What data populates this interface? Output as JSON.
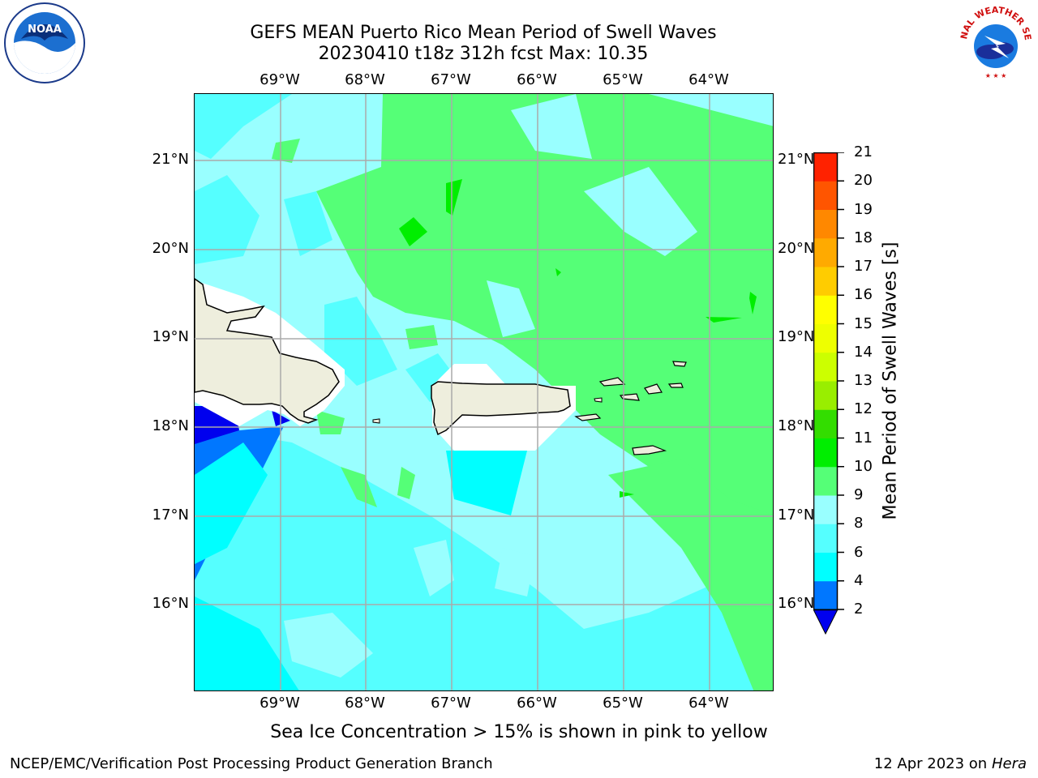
{
  "header": {
    "title_line1": "GEFS MEAN Puerto Rico Mean Period of Swell Waves",
    "title_line2": "20230410 t18z 312h fcst   Max: 10.35"
  },
  "axes": {
    "longitude_ticks": [
      "69°W",
      "68°W",
      "67°W",
      "66°W",
      "65°W",
      "64°W"
    ],
    "latitude_ticks": [
      "21°N",
      "20°N",
      "19°N",
      "18°N",
      "17°N",
      "16°N"
    ]
  },
  "colorbar": {
    "title": "Mean Period of Swell Waves [s]",
    "levels": [
      "2",
      "4",
      "6",
      "8",
      "9",
      "10",
      "11",
      "12",
      "13",
      "14",
      "15",
      "16",
      "17",
      "18",
      "19",
      "20",
      "21"
    ],
    "colors": [
      "#0000ee",
      "#0077ff",
      "#00ffff",
      "#55ffff",
      "#99ffff",
      "#55ff77",
      "#00ee00",
      "#33dd00",
      "#99ee00",
      "#ccff00",
      "#eeff00",
      "#ffff00",
      "#ffcc00",
      "#ffaa00",
      "#ff8800",
      "#ff5500",
      "#ff2200",
      "#ff0000"
    ],
    "extend_color": "#0000ee"
  },
  "map": {
    "land_color": "#eeeedd",
    "grid_color": "#aaaaaa"
  },
  "footnote": "Sea Ice Concentration > 15% is shown in pink to yellow",
  "footer": {
    "credit": "NCEP/EMC/Verification Post Processing Product Generation Branch",
    "date": "12 Apr 2023 on",
    "machine": "Hera"
  },
  "logos": {
    "left": "NOAA",
    "right": "NATIONAL WEATHER SERVICE"
  }
}
